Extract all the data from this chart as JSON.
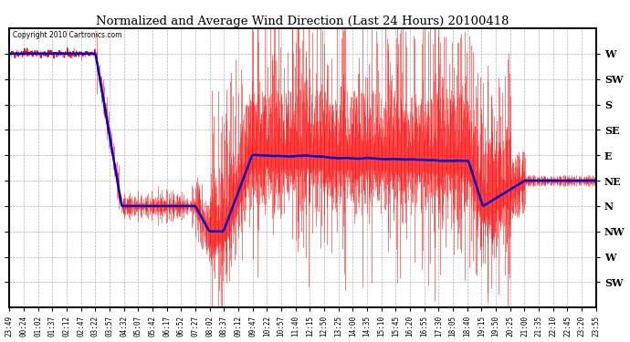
{
  "title": "Normalized and Average Wind Direction (Last 24 Hours) 20100418",
  "copyright": "Copyright 2010 Cartronics.com",
  "background_color": "#ffffff",
  "plot_bg_color": "#ffffff",
  "grid_color": "#aaaaaa",
  "red_color": "#ff0000",
  "blue_color": "#0000cc",
  "ytick_labels_right": [
    "W",
    "SW",
    "S",
    "SE",
    "E",
    "NE",
    "N",
    "NW",
    "W",
    "SW"
  ],
  "ytick_values": [
    360,
    315,
    270,
    225,
    180,
    135,
    90,
    45,
    0,
    -45
  ],
  "ylim": [
    -90,
    405
  ],
  "xtick_labels": [
    "23:49",
    "00:24",
    "01:02",
    "01:37",
    "02:12",
    "02:47",
    "03:22",
    "03:57",
    "04:32",
    "05:07",
    "05:42",
    "06:17",
    "06:52",
    "07:27",
    "08:02",
    "08:37",
    "09:12",
    "09:47",
    "10:22",
    "10:57",
    "11:40",
    "12:15",
    "12:50",
    "13:25",
    "14:00",
    "14:35",
    "15:10",
    "15:45",
    "16:20",
    "16:55",
    "17:30",
    "18:05",
    "18:40",
    "19:15",
    "19:50",
    "20:25",
    "21:00",
    "21:35",
    "22:10",
    "22:45",
    "23:20",
    "23:55"
  ],
  "figwidth": 6.9,
  "figheight": 3.75,
  "dpi": 100
}
